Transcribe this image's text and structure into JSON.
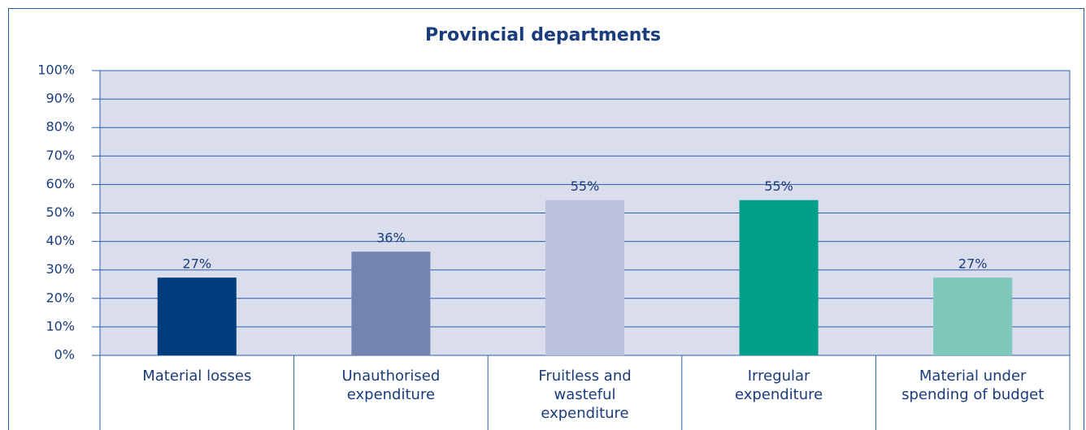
{
  "chart_data": {
    "type": "bar",
    "title": "Provincial departments",
    "categories": [
      "Material losses",
      "Unauthorised expenditure",
      "Fruitless and wasteful expenditure",
      "Irregular expenditure",
      "Material under spending of budget"
    ],
    "values": [
      27.3,
      36.4,
      54.5,
      54.5,
      27.3
    ],
    "value_labels": [
      "27%",
      "36%",
      "55%",
      "55%",
      "27%"
    ],
    "colors": [
      "#003d7c",
      "#7384b0",
      "#b9c1dc",
      "#00a08a",
      "#7dc8bb"
    ],
    "ylim": [
      0,
      100
    ],
    "yticks": [
      {
        "value": 0,
        "label": "0%"
      },
      {
        "value": 10,
        "label": "10%"
      },
      {
        "value": 20,
        "label": "20%"
      },
      {
        "value": 30,
        "label": "30%"
      },
      {
        "value": 40,
        "label": "40%"
      },
      {
        "value": 50,
        "label": "50%"
      },
      {
        "value": 60,
        "label": "60%"
      },
      {
        "value": 70,
        "label": "70%"
      },
      {
        "value": 80,
        "label": "80%"
      },
      {
        "value": 90,
        "label": "90%"
      },
      {
        "value": 100,
        "label": "100%"
      }
    ],
    "grid": true
  }
}
